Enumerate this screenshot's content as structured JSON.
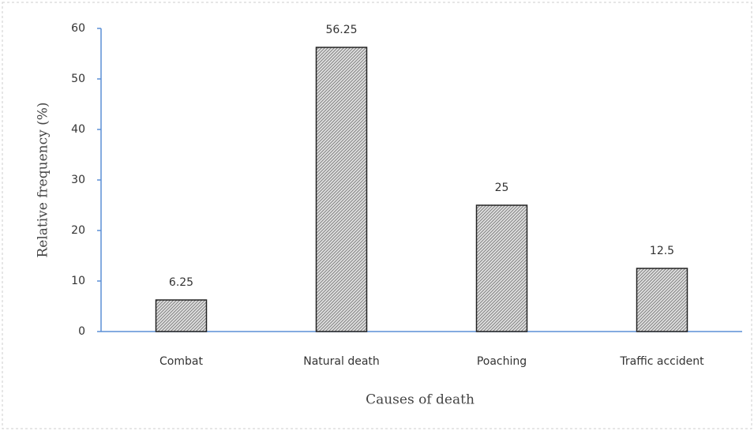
{
  "chart_data": {
    "type": "bar",
    "x_label": "Causes of death",
    "y_label": "Relative frequency (%)",
    "categories": [
      "Combat",
      "Natural death",
      "Poaching",
      "Traffic accident"
    ],
    "values": [
      6.25,
      56.25,
      25,
      12.5
    ],
    "color": "#8a8a8a",
    "ylim": [
      0,
      60
    ],
    "yticks": [
      0,
      10,
      20,
      30,
      40,
      50,
      60
    ],
    "grid": false
  }
}
